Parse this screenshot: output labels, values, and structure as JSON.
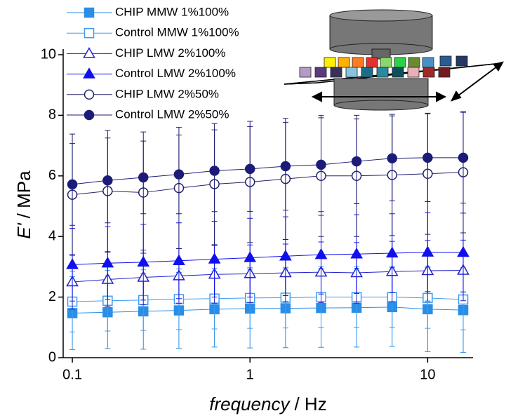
{
  "chart_data": {
    "type": "line",
    "ylabel_symbol": "E'",
    "ylabel_unit": "/ MPa",
    "xlabel_symbol": "frequency",
    "xlabel_unit": "/ Hz",
    "x_log": true,
    "legend": "upper left",
    "x": [
      0.1,
      0.158,
      0.251,
      0.398,
      0.631,
      1,
      1.585,
      2.512,
      3.981,
      6.31,
      10,
      15.85
    ],
    "xlim": [
      0.0888,
      18
    ],
    "xticks": [
      0.1,
      1,
      10
    ],
    "ylim": [
      0,
      10
    ],
    "yticks": [
      0,
      2,
      4,
      6,
      8,
      10
    ],
    "series": [
      {
        "name": "CHIP MMW 1%100%",
        "color": "#2b8ee6",
        "marker": "square",
        "filled": true,
        "values": [
          1.47,
          1.5,
          1.53,
          1.56,
          1.6,
          1.62,
          1.63,
          1.64,
          1.65,
          1.67,
          1.6,
          1.57
        ],
        "errors": [
          1.2,
          1.2,
          1.25,
          1.25,
          1.25,
          1.3,
          1.3,
          1.3,
          1.3,
          1.3,
          1.4,
          1.4
        ]
      },
      {
        "name": "Control MMW 1%100%",
        "color": "#3f9cf0",
        "marker": "square",
        "filled": false,
        "values": [
          1.85,
          1.88,
          1.9,
          1.93,
          1.95,
          1.97,
          1.98,
          2.0,
          2.0,
          2.0,
          1.97,
          1.92
        ],
        "errors": [
          1.0,
          1.0,
          1.0,
          1.0,
          1.0,
          1.0,
          1.0,
          1.0,
          1.0,
          1.0,
          1.0,
          1.0
        ]
      },
      {
        "name": "CHIP LMW 2%100%",
        "color": "#2222cc",
        "marker": "triangle",
        "filled": false,
        "values": [
          2.5,
          2.58,
          2.65,
          2.7,
          2.75,
          2.77,
          2.8,
          2.82,
          2.8,
          2.84,
          2.87,
          2.88
        ],
        "errors": [
          0.9,
          0.9,
          0.9,
          0.9,
          0.95,
          0.95,
          0.95,
          1.0,
          1.0,
          1.0,
          1.0,
          1.0
        ]
      },
      {
        "name": "Control LMW 2%100%",
        "color": "#1010ee",
        "marker": "triangle",
        "filled": true,
        "values": [
          3.07,
          3.12,
          3.15,
          3.2,
          3.25,
          3.3,
          3.35,
          3.4,
          3.42,
          3.45,
          3.48,
          3.47
        ],
        "errors": [
          1.2,
          1.2,
          1.25,
          1.25,
          1.25,
          1.3,
          1.3,
          1.3,
          1.3,
          1.3,
          1.3,
          1.3
        ]
      },
      {
        "name": "CHIP LMW 2%50%",
        "color": "#22226e",
        "marker": "circle",
        "filled": false,
        "values": [
          5.38,
          5.5,
          5.45,
          5.6,
          5.73,
          5.8,
          5.9,
          6.0,
          6.0,
          6.03,
          6.07,
          6.12
        ],
        "errors": [
          2.0,
          2.0,
          2.0,
          2.0,
          2.0,
          2.0,
          2.0,
          2.0,
          2.0,
          2.0,
          2.0,
          2.0
        ]
      },
      {
        "name": "Control LMW 2%50%",
        "color": "#1c1c78",
        "marker": "circle",
        "filled": true,
        "values": [
          5.72,
          5.85,
          5.95,
          6.05,
          6.17,
          6.23,
          6.32,
          6.37,
          6.48,
          6.58,
          6.6,
          6.6
        ],
        "errors": [
          1.35,
          1.4,
          1.2,
          1.3,
          1.35,
          1.4,
          1.45,
          1.55,
          1.4,
          1.4,
          1.45,
          1.5
        ]
      }
    ]
  }
}
